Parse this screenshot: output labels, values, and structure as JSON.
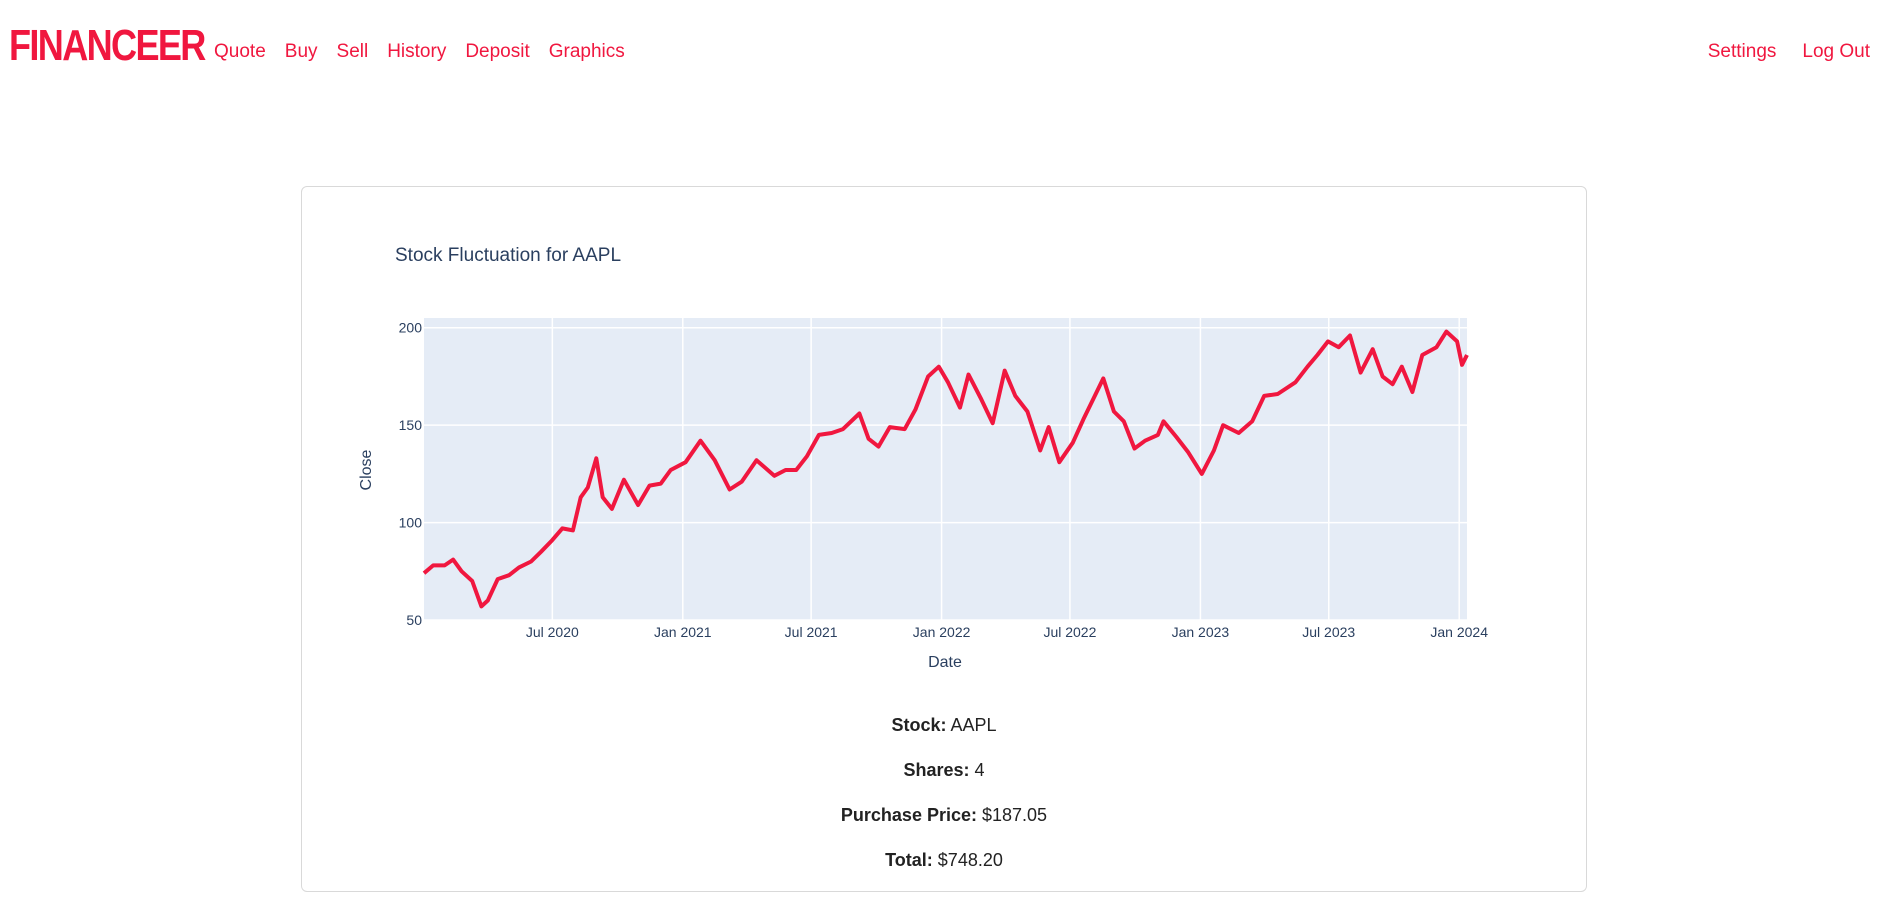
{
  "navbar": {
    "brand": "FINANCEER",
    "left_links": [
      "Quote",
      "Buy",
      "Sell",
      "History",
      "Deposit",
      "Graphics"
    ],
    "right_links": [
      "Settings",
      "Log Out"
    ]
  },
  "colors": {
    "accent": "#f0173f",
    "plot_bg": "#e5ecf6",
    "text": "#2a3f5f"
  },
  "chart_data": {
    "type": "line",
    "title": "Stock Fluctuation for AAPL",
    "xlabel": "Date",
    "ylabel": "Close",
    "xlim": [
      "2020-01-02",
      "2024-01-12"
    ],
    "ylim": [
      50,
      205
    ],
    "x_ticks": [
      "Jul 2020",
      "Jan 2021",
      "Jul 2021",
      "Jan 2022",
      "Jul 2022",
      "Jan 2023",
      "Jul 2023",
      "Jan 2024"
    ],
    "y_ticks": [
      50,
      100,
      150,
      200
    ],
    "grid": true,
    "series": [
      {
        "color": "#f0173f",
        "points": [
          [
            "2020-01-02",
            74
          ],
          [
            "2020-01-15",
            78
          ],
          [
            "2020-01-31",
            78
          ],
          [
            "2020-02-12",
            81
          ],
          [
            "2020-02-24",
            75
          ],
          [
            "2020-03-10",
            70
          ],
          [
            "2020-03-23",
            57
          ],
          [
            "2020-04-01",
            60
          ],
          [
            "2020-04-15",
            71
          ],
          [
            "2020-05-01",
            73
          ],
          [
            "2020-05-15",
            77
          ],
          [
            "2020-06-01",
            80
          ],
          [
            "2020-06-15",
            85
          ],
          [
            "2020-07-01",
            91
          ],
          [
            "2020-07-15",
            97
          ],
          [
            "2020-07-30",
            96
          ],
          [
            "2020-08-10",
            113
          ],
          [
            "2020-08-20",
            118
          ],
          [
            "2020-09-01",
            133
          ],
          [
            "2020-09-10",
            113
          ],
          [
            "2020-09-23",
            107
          ],
          [
            "2020-10-10",
            122
          ],
          [
            "2020-10-30",
            109
          ],
          [
            "2020-11-15",
            119
          ],
          [
            "2020-12-01",
            120
          ],
          [
            "2020-12-15",
            127
          ],
          [
            "2021-01-05",
            131
          ],
          [
            "2021-01-26",
            142
          ],
          [
            "2021-02-15",
            132
          ],
          [
            "2021-03-08",
            117
          ],
          [
            "2021-03-25",
            121
          ],
          [
            "2021-04-15",
            132
          ],
          [
            "2021-05-10",
            124
          ],
          [
            "2021-05-26",
            127
          ],
          [
            "2021-06-10",
            127
          ],
          [
            "2021-06-25",
            134
          ],
          [
            "2021-07-12",
            145
          ],
          [
            "2021-07-30",
            146
          ],
          [
            "2021-08-15",
            148
          ],
          [
            "2021-09-07",
            156
          ],
          [
            "2021-09-20",
            143
          ],
          [
            "2021-10-04",
            139
          ],
          [
            "2021-10-20",
            149
          ],
          [
            "2021-11-10",
            148
          ],
          [
            "2021-11-25",
            158
          ],
          [
            "2021-12-13",
            175
          ],
          [
            "2021-12-28",
            180
          ],
          [
            "2022-01-10",
            172
          ],
          [
            "2022-01-27",
            159
          ],
          [
            "2022-02-08",
            176
          ],
          [
            "2022-02-25",
            164
          ],
          [
            "2022-03-14",
            151
          ],
          [
            "2022-03-31",
            178
          ],
          [
            "2022-04-15",
            165
          ],
          [
            "2022-05-02",
            157
          ],
          [
            "2022-05-20",
            137
          ],
          [
            "2022-06-01",
            149
          ],
          [
            "2022-06-16",
            131
          ],
          [
            "2022-07-05",
            141
          ],
          [
            "2022-07-20",
            153
          ],
          [
            "2022-08-05",
            165
          ],
          [
            "2022-08-17",
            174
          ],
          [
            "2022-09-01",
            157
          ],
          [
            "2022-09-15",
            152
          ],
          [
            "2022-09-30",
            138
          ],
          [
            "2022-10-15",
            142
          ],
          [
            "2022-11-02",
            145
          ],
          [
            "2022-11-10",
            152
          ],
          [
            "2022-11-28",
            144
          ],
          [
            "2022-12-15",
            136
          ],
          [
            "2023-01-03",
            125
          ],
          [
            "2023-01-20",
            137
          ],
          [
            "2023-02-02",
            150
          ],
          [
            "2023-02-24",
            146
          ],
          [
            "2023-03-15",
            152
          ],
          [
            "2023-04-01",
            165
          ],
          [
            "2023-04-20",
            166
          ],
          [
            "2023-05-15",
            172
          ],
          [
            "2023-06-01",
            180
          ],
          [
            "2023-06-15",
            186
          ],
          [
            "2023-06-30",
            193
          ],
          [
            "2023-07-15",
            190
          ],
          [
            "2023-07-31",
            196
          ],
          [
            "2023-08-15",
            177
          ],
          [
            "2023-09-01",
            189
          ],
          [
            "2023-09-15",
            175
          ],
          [
            "2023-09-29",
            171
          ],
          [
            "2023-10-12",
            180
          ],
          [
            "2023-10-27",
            167
          ],
          [
            "2023-11-10",
            186
          ],
          [
            "2023-11-30",
            190
          ],
          [
            "2023-12-14",
            198
          ],
          [
            "2023-12-29",
            193
          ],
          [
            "2024-01-05",
            181
          ],
          [
            "2024-01-12",
            186
          ]
        ]
      }
    ]
  },
  "info": {
    "stock_label": "Stock:",
    "stock_value": "AAPL",
    "shares_label": "Shares:",
    "shares_value": "4",
    "price_label": "Purchase Price:",
    "price_value": "$187.05",
    "total_label": "Total:",
    "total_value": "$748.20"
  }
}
